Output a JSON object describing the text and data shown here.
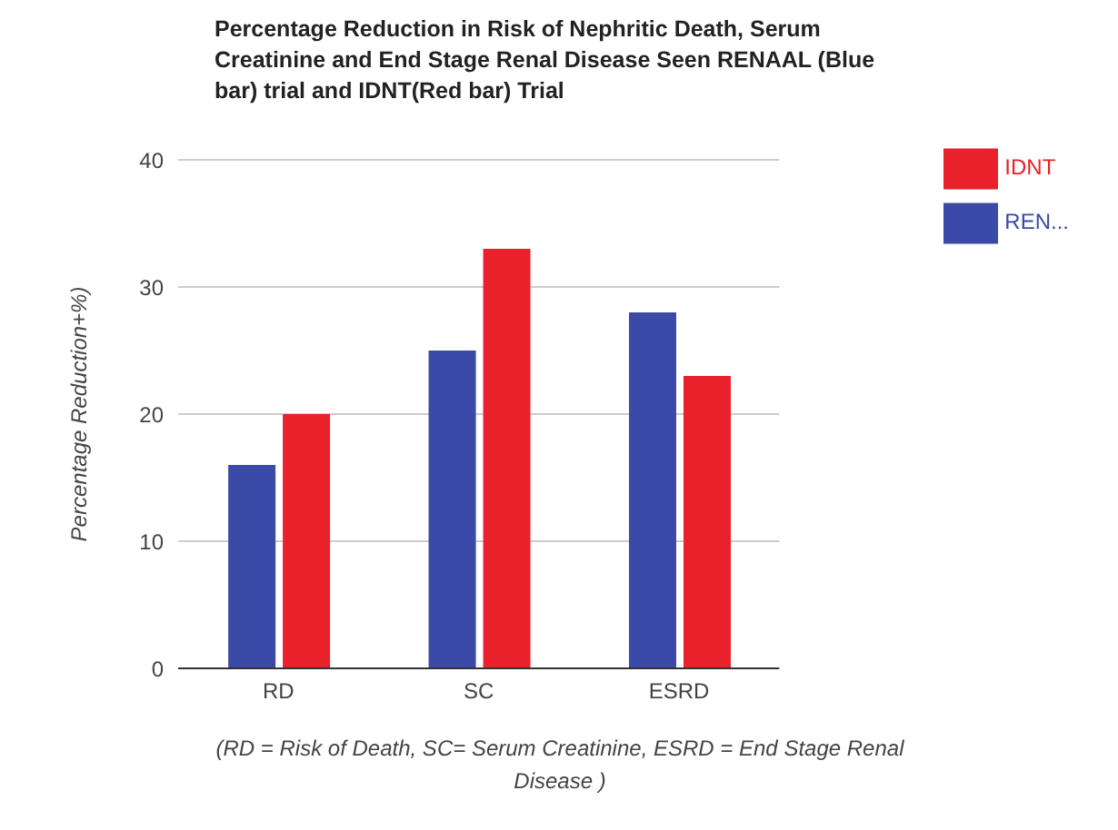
{
  "chart_data": {
    "type": "bar",
    "title": "Percentage Reduction in Risk of Nephritic Death, Serum Creatinine and End Stage Renal Disease Seen RENAAL (Blue bar) trial and IDNT(Red bar) Trial",
    "ylabel": "Percentage Reduction+%)",
    "xlabel": "(RD = Risk of Death, SC= Serum Creatinine, ESRD = End Stage Renal Disease )",
    "categories": [
      "RD",
      "SC",
      "ESRD"
    ],
    "series": [
      {
        "name": "REN...",
        "color": "#3a4aa6",
        "values": [
          16,
          25,
          28
        ]
      },
      {
        "name": "IDNT",
        "color": "#e8212b",
        "values": [
          20,
          33,
          23
        ]
      }
    ],
    "ylim": [
      0,
      40
    ],
    "yticks": [
      0,
      10,
      20,
      30,
      40
    ],
    "grid": "y",
    "legend": "top right"
  }
}
